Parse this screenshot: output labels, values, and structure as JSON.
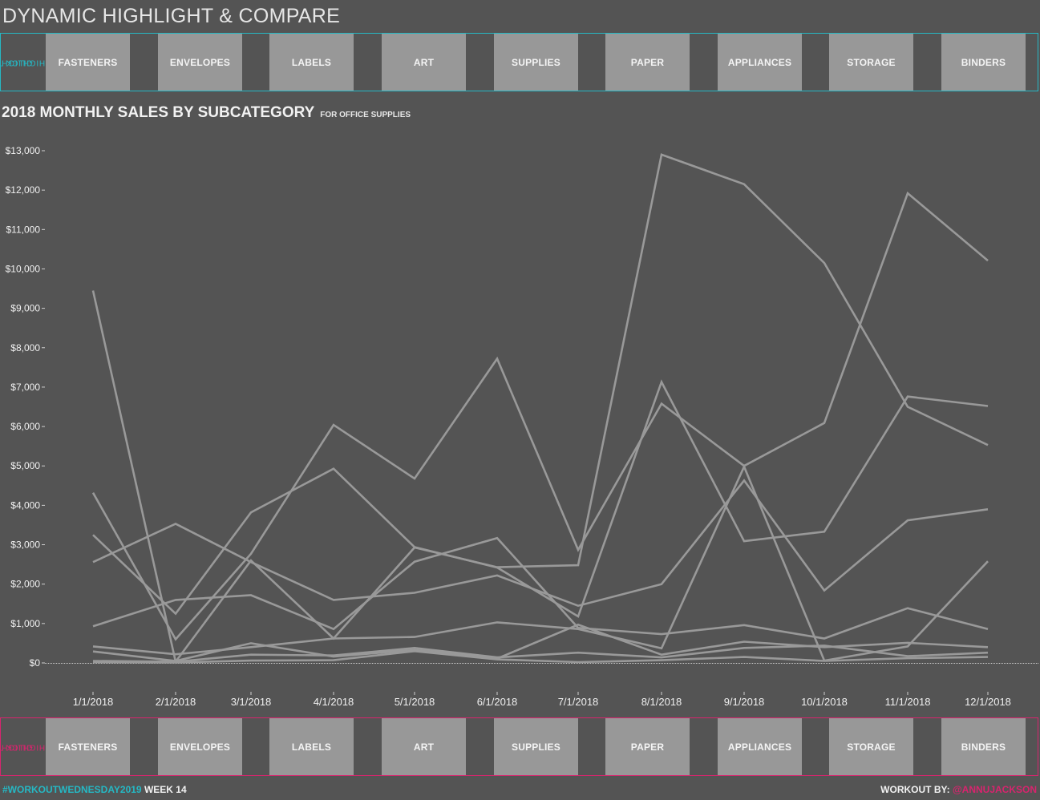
{
  "title": "DYNAMIC HIGHLIGHT & COMPARE",
  "highlight_top": {
    "label_line1": "CLICK TO",
    "label_line2": "HIGHLIGHT",
    "color": "#25b8c4"
  },
  "highlight_bottom": {
    "label_line1": "CLICK TO",
    "label_line2": "HIGHLIGHT",
    "color": "#d8246e"
  },
  "categories": [
    "FASTENERS",
    "ENVELOPES",
    "LABELS",
    "ART",
    "SUPPLIES",
    "PAPER",
    "APPLIANCES",
    "STORAGE",
    "BINDERS"
  ],
  "chart_title": "2018 MONTHLY SALES BY SUBCATEGORY",
  "chart_subtitle": "FOR OFFICE SUPPLIES",
  "footer": {
    "hashtag": "#WORKOUTWEDNESDAY2019",
    "week": "WEEK 14",
    "workout_by": "WORKOUT BY:",
    "handle": "@ANNUJACKSON"
  },
  "chart_data": {
    "type": "line",
    "x": [
      "1/1/2018",
      "2/1/2018",
      "3/1/2018",
      "4/1/2018",
      "5/1/2018",
      "6/1/2018",
      "7/1/2018",
      "8/1/2018",
      "9/1/2018",
      "10/1/2018",
      "11/1/2018",
      "12/1/2018"
    ],
    "ylim": [
      0,
      13000
    ],
    "yticks": [
      0,
      1000,
      2000,
      3000,
      4000,
      5000,
      6000,
      7000,
      8000,
      9000,
      10000,
      11000,
      12000,
      13000
    ],
    "ytick_labels": [
      "$0",
      "$1,000",
      "$2,000",
      "$3,000",
      "$4,000",
      "$5,000",
      "$6,000",
      "$7,000",
      "$8,000",
      "$9,000",
      "$10,000",
      "$11,000",
      "$12,000",
      "$13,000"
    ],
    "line_color": "#999999",
    "series": [
      {
        "values": [
          9450,
          30,
          2600,
          620,
          2930,
          2430,
          2480,
          12900,
          12150,
          10150,
          6500,
          5530
        ]
      },
      {
        "values": [
          4320,
          600,
          2770,
          6040,
          4680,
          7720,
          2870,
          6580,
          5000,
          6090,
          11920,
          10210
        ]
      },
      {
        "values": [
          3250,
          1250,
          3820,
          4930,
          2940,
          2420,
          1180,
          7130,
          3090,
          3330,
          6760,
          6520
        ]
      },
      {
        "values": [
          2560,
          3530,
          2560,
          1600,
          1780,
          2220,
          1450,
          2000,
          4630,
          1840,
          3620,
          3900
        ]
      },
      {
        "values": [
          930,
          1600,
          1720,
          860,
          2570,
          3170,
          890,
          730,
          960,
          620,
          1390,
          860
        ]
      },
      {
        "values": [
          420,
          220,
          400,
          620,
          660,
          1030,
          860,
          370,
          4980,
          60,
          420,
          2580
        ]
      },
      {
        "values": [
          290,
          50,
          500,
          160,
          330,
          110,
          970,
          210,
          540,
          400,
          510,
          400
        ]
      },
      {
        "values": [
          50,
          30,
          210,
          190,
          380,
          140,
          260,
          140,
          380,
          440,
          170,
          260
        ]
      },
      {
        "values": [
          20,
          10,
          60,
          70,
          300,
          90,
          20,
          70,
          150,
          50,
          120,
          150
        ]
      }
    ]
  }
}
